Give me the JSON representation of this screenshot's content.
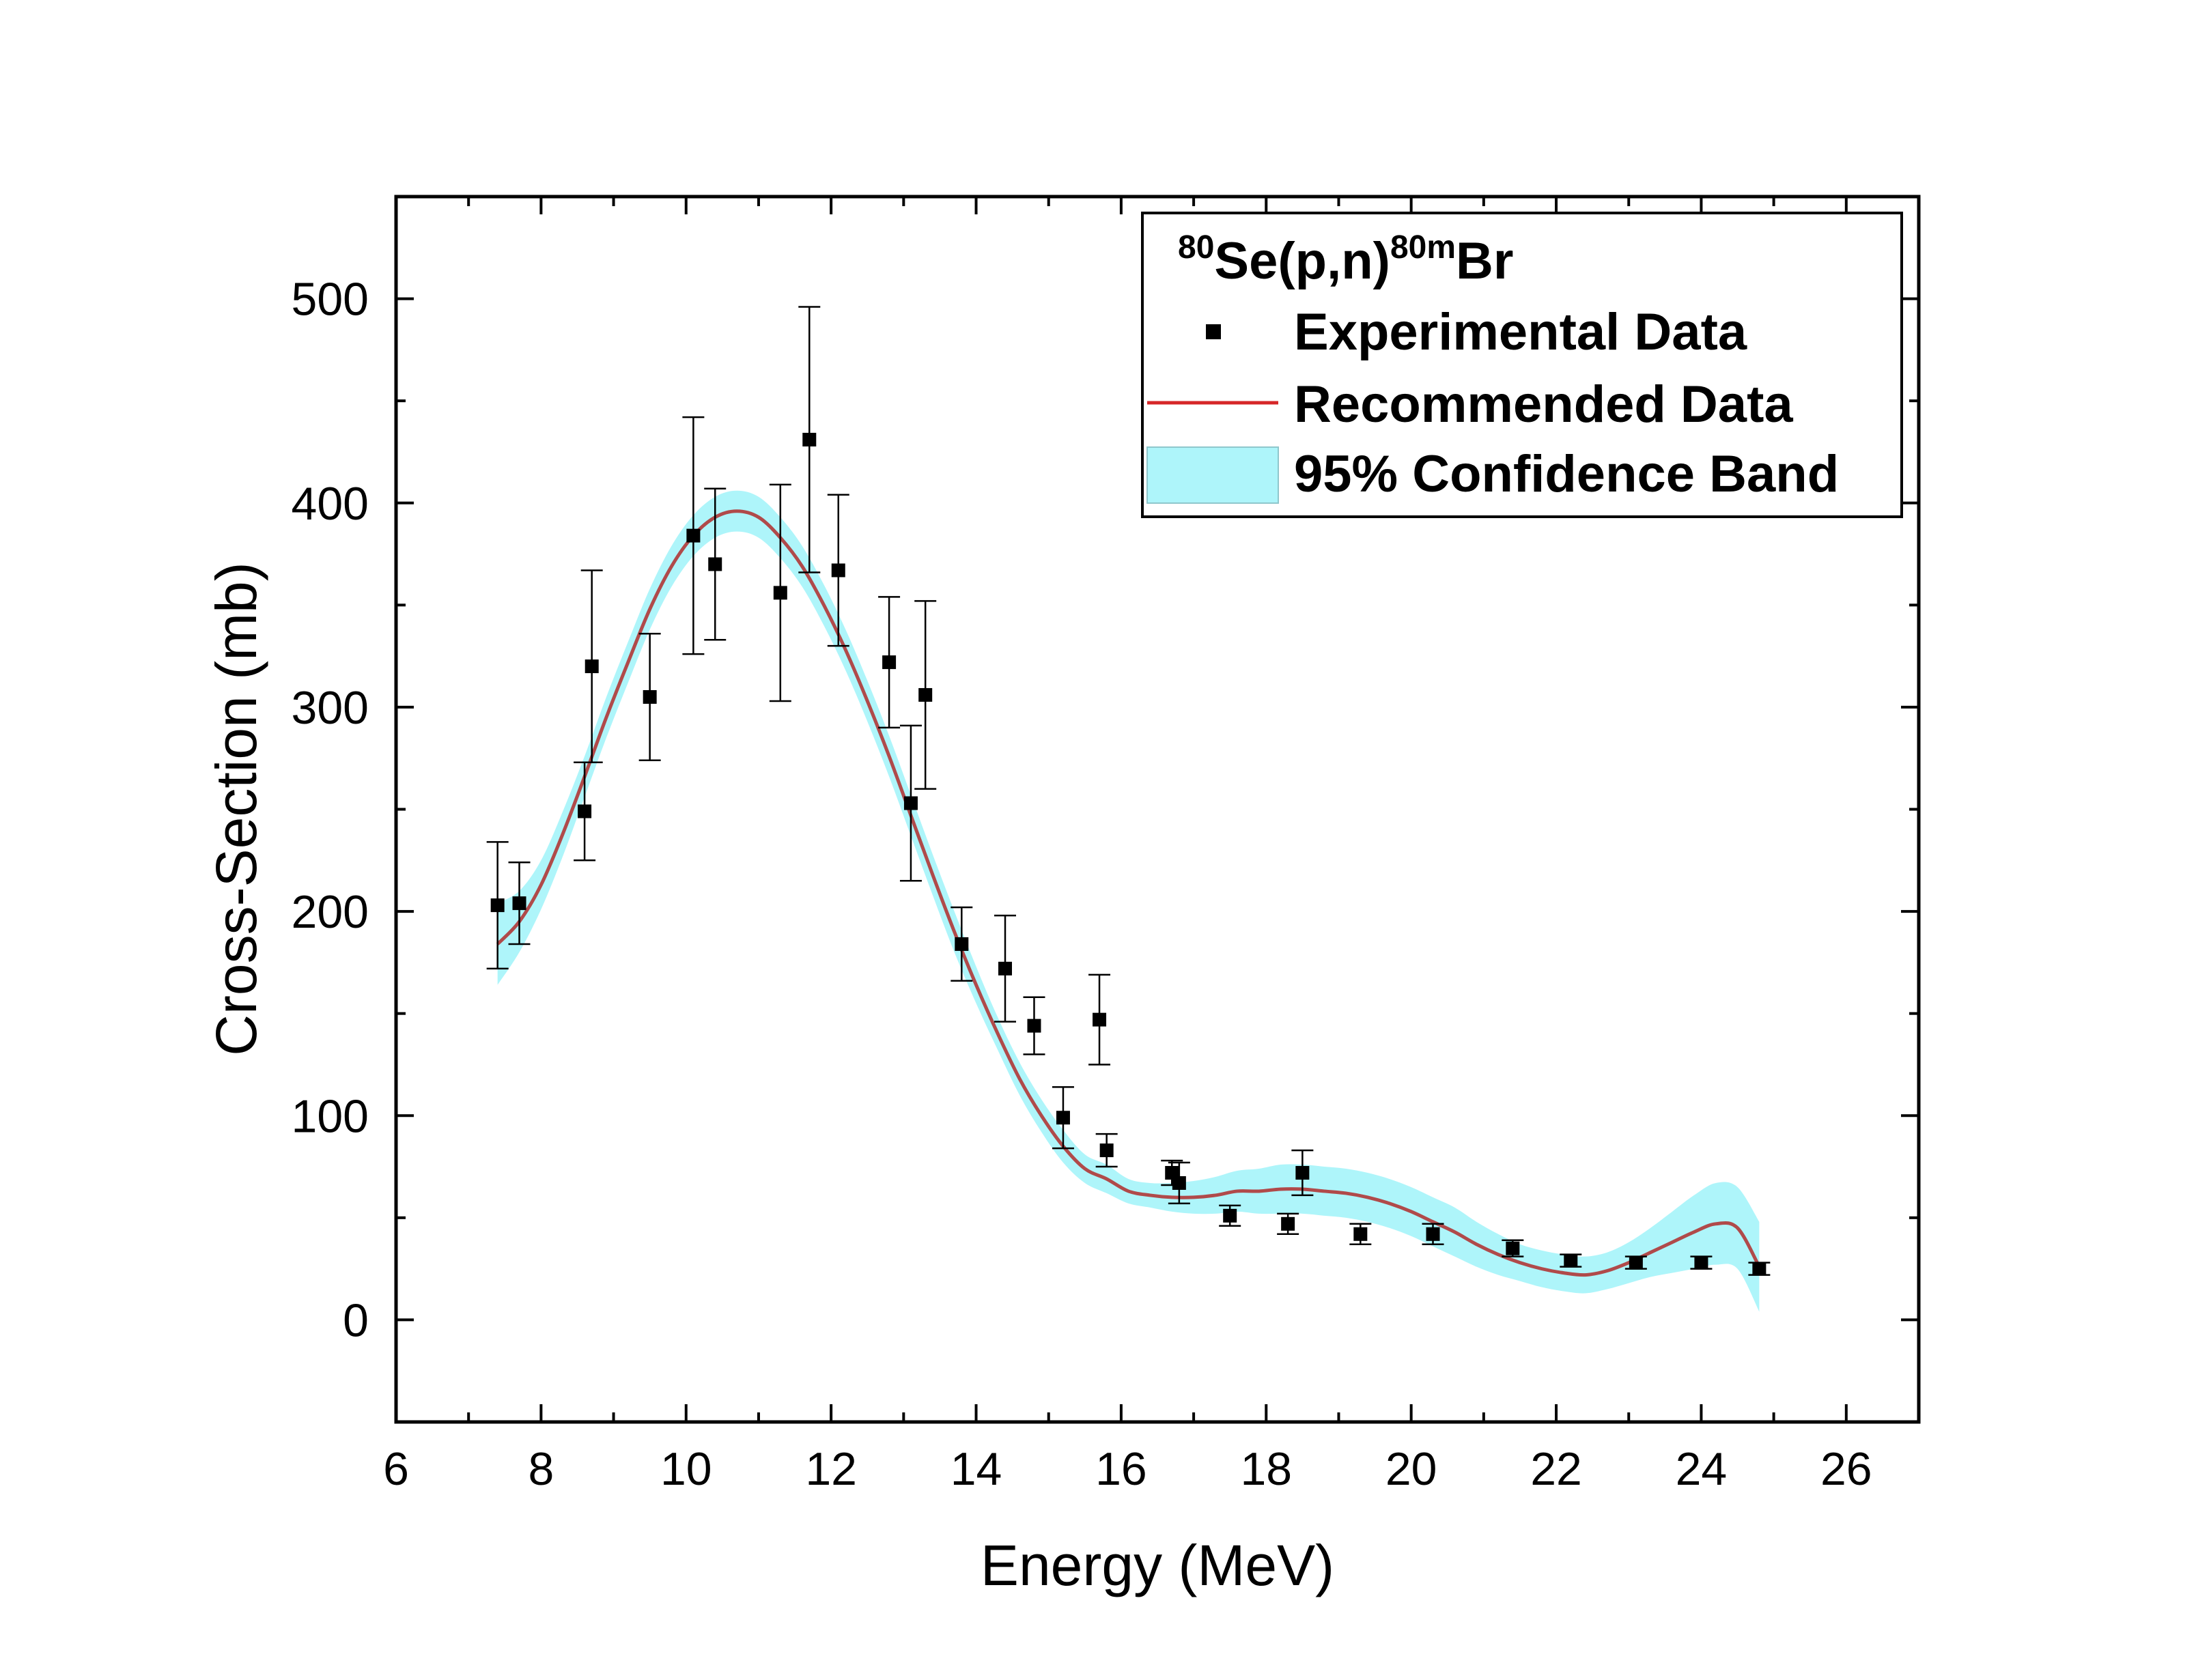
{
  "chart_data": {
    "type": "scatter",
    "title": "",
    "xlabel": "Energy (MeV)",
    "ylabel": "Cross-Section (mb)",
    "xlim": [
      6,
      27
    ],
    "ylim": [
      -50,
      550
    ],
    "xticks": [
      6,
      8,
      10,
      12,
      14,
      16,
      18,
      20,
      22,
      24,
      26
    ],
    "yticks": [
      0,
      100,
      200,
      300,
      400,
      500
    ],
    "x_minor_step": 1,
    "y_minor_step": 50,
    "grid": false,
    "legend": {
      "position": "top-right",
      "reaction": {
        "mass1": "80",
        "core": "Se(p,n)",
        "mass2": "80m",
        "product": "Br"
      },
      "entries": [
        {
          "label": "Experimental Data",
          "kind": "marker",
          "color": "#000000"
        },
        {
          "label": "Recommended Data",
          "kind": "line",
          "color": "#d62728"
        },
        {
          "label": "95% Confidence Band",
          "kind": "band",
          "color": "#aef5fa"
        }
      ]
    },
    "experimental": {
      "name": "Experimental Data",
      "color": "#000000",
      "points": [
        {
          "x": 7.4,
          "y": 203,
          "err": 31
        },
        {
          "x": 7.7,
          "y": 204,
          "err": 20
        },
        {
          "x": 8.6,
          "y": 249,
          "err": 24
        },
        {
          "x": 8.7,
          "y": 320,
          "err": 47
        },
        {
          "x": 9.5,
          "y": 305,
          "err": 31
        },
        {
          "x": 10.1,
          "y": 384,
          "err": 58
        },
        {
          "x": 10.4,
          "y": 370,
          "err": 37
        },
        {
          "x": 11.3,
          "y": 356,
          "err": 53
        },
        {
          "x": 11.7,
          "y": 431,
          "err": 65
        },
        {
          "x": 12.1,
          "y": 367,
          "err": 37
        },
        {
          "x": 12.8,
          "y": 322,
          "err": 32
        },
        {
          "x": 13.1,
          "y": 253,
          "err": 38
        },
        {
          "x": 13.3,
          "y": 306,
          "err": 46
        },
        {
          "x": 13.8,
          "y": 184,
          "err": 18
        },
        {
          "x": 14.4,
          "y": 172,
          "err": 26
        },
        {
          "x": 14.8,
          "y": 144,
          "err": 14
        },
        {
          "x": 15.2,
          "y": 99,
          "err": 15
        },
        {
          "x": 15.7,
          "y": 147,
          "err": 22
        },
        {
          "x": 15.8,
          "y": 83,
          "err": 8
        },
        {
          "x": 16.7,
          "y": 72,
          "err": 6
        },
        {
          "x": 16.8,
          "y": 67,
          "err": 10
        },
        {
          "x": 17.5,
          "y": 51,
          "err": 5
        },
        {
          "x": 18.3,
          "y": 47,
          "err": 5
        },
        {
          "x": 18.5,
          "y": 72,
          "err": 11
        },
        {
          "x": 19.3,
          "y": 42,
          "err": 5
        },
        {
          "x": 20.3,
          "y": 42,
          "err": 5
        },
        {
          "x": 21.4,
          "y": 35,
          "err": 4
        },
        {
          "x": 22.2,
          "y": 29,
          "err": 3
        },
        {
          "x": 23.1,
          "y": 28,
          "err": 3
        },
        {
          "x": 24.0,
          "y": 28,
          "err": 3
        },
        {
          "x": 24.8,
          "y": 25,
          "err": 3
        }
      ]
    },
    "recommended": {
      "name": "Recommended Data",
      "color": "#d62728",
      "x": [
        7.4,
        7.7,
        8.0,
        8.3,
        8.6,
        8.9,
        9.2,
        9.5,
        9.8,
        10.1,
        10.4,
        10.7,
        11.0,
        11.3,
        11.6,
        11.9,
        12.2,
        12.5,
        12.8,
        13.1,
        13.4,
        13.7,
        14.0,
        14.3,
        14.6,
        14.9,
        15.2,
        15.5,
        15.8,
        16.1,
        16.4,
        16.7,
        17.0,
        17.3,
        17.6,
        17.9,
        18.2,
        18.5,
        18.8,
        19.1,
        19.4,
        19.7,
        20.0,
        20.3,
        20.6,
        20.9,
        21.2,
        21.5,
        21.8,
        22.1,
        22.4,
        22.7,
        23.0,
        23.3,
        23.6,
        23.9,
        24.2,
        24.5,
        24.8
      ],
      "y": [
        184,
        195,
        213,
        238,
        266,
        295,
        322,
        348,
        369,
        384,
        393,
        396,
        393,
        383,
        369,
        350,
        328,
        303,
        276,
        247,
        218,
        190,
        164,
        140,
        118,
        100,
        85,
        74,
        69,
        63,
        61,
        60,
        60,
        61,
        63,
        63,
        64,
        64,
        63,
        62,
        60,
        57,
        53,
        48,
        43,
        37,
        32,
        28,
        25,
        23,
        22,
        24,
        28,
        33,
        38,
        43,
        47,
        45,
        26
      ],
      "band_halfwidth": [
        20,
        15,
        12,
        11,
        10,
        10,
        10,
        10,
        10,
        10,
        10,
        10,
        10,
        10,
        10,
        10,
        10,
        10,
        10,
        10,
        10,
        10,
        9,
        8,
        8,
        8,
        8,
        7,
        7,
        6,
        6,
        7,
        8,
        9,
        10,
        11,
        12,
        12,
        12,
        12,
        12,
        12,
        12,
        12,
        12,
        11,
        10,
        9,
        9,
        9,
        9,
        9,
        10,
        12,
        15,
        18,
        20,
        20,
        22
      ]
    }
  }
}
